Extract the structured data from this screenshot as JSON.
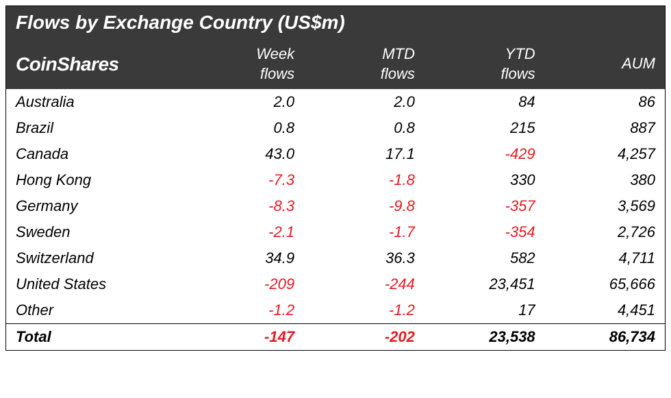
{
  "title": "Flows by Exchange Country (US$m)",
  "brand": "CoinShares",
  "colors": {
    "header_bg": "#3a3a3a",
    "header_fg": "#ffffff",
    "negative": "#e31b23",
    "text": "#000000",
    "border": "#000000"
  },
  "typography": {
    "title_fontsize": 28,
    "header_fontsize": 22,
    "body_fontsize": 22,
    "italic": true
  },
  "columns": [
    {
      "line1": "Week",
      "line2": "flows"
    },
    {
      "line1": "MTD",
      "line2": "flows"
    },
    {
      "line1": "YTD",
      "line2": "flows"
    },
    {
      "line1": "",
      "line2": "AUM"
    }
  ],
  "rows": [
    {
      "label": "Australia",
      "week": "2.0",
      "week_neg": false,
      "mtd": "2.0",
      "mtd_neg": false,
      "ytd": "84",
      "ytd_neg": false,
      "aum": "86"
    },
    {
      "label": "Brazil",
      "week": "0.8",
      "week_neg": false,
      "mtd": "0.8",
      "mtd_neg": false,
      "ytd": "215",
      "ytd_neg": false,
      "aum": "887"
    },
    {
      "label": "Canada",
      "week": "43.0",
      "week_neg": false,
      "mtd": "17.1",
      "mtd_neg": false,
      "ytd": "-429",
      "ytd_neg": true,
      "aum": "4,257"
    },
    {
      "label": "Hong Kong",
      "week": "-7.3",
      "week_neg": true,
      "mtd": "-1.8",
      "mtd_neg": true,
      "ytd": "330",
      "ytd_neg": false,
      "aum": "380"
    },
    {
      "label": "Germany",
      "week": "-8.3",
      "week_neg": true,
      "mtd": "-9.8",
      "mtd_neg": true,
      "ytd": "-357",
      "ytd_neg": true,
      "aum": "3,569"
    },
    {
      "label": "Sweden",
      "week": "-2.1",
      "week_neg": true,
      "mtd": "-1.7",
      "mtd_neg": true,
      "ytd": "-354",
      "ytd_neg": true,
      "aum": "2,726"
    },
    {
      "label": "Switzerland",
      "week": "34.9",
      "week_neg": false,
      "mtd": "36.3",
      "mtd_neg": false,
      "ytd": "582",
      "ytd_neg": false,
      "aum": "4,711"
    },
    {
      "label": "United States",
      "week": "-209",
      "week_neg": true,
      "mtd": "-244",
      "mtd_neg": true,
      "ytd": "23,451",
      "ytd_neg": false,
      "aum": "65,666"
    },
    {
      "label": "Other",
      "week": "-1.2",
      "week_neg": true,
      "mtd": "-1.2",
      "mtd_neg": true,
      "ytd": "17",
      "ytd_neg": false,
      "aum": "4,451"
    }
  ],
  "total": {
    "label": "Total",
    "week": "-147",
    "week_neg": true,
    "mtd": "-202",
    "mtd_neg": true,
    "ytd": "23,538",
    "ytd_neg": false,
    "aum": "86,734"
  }
}
